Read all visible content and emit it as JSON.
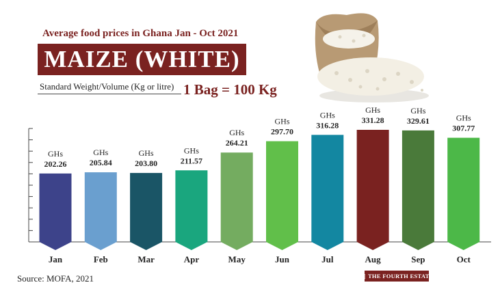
{
  "header": {
    "subtitle": "Average food prices in Ghana Jan - Oct 2021",
    "title": "MAIZE (WHITE)",
    "standard_label": "Standard Weight/Volume (Kg or litre)",
    "bag_label": "1 Bag = 100 Kg"
  },
  "footer": {
    "source": "Source: MOFA, 2021",
    "logo": "THE FOURTH ESTATE"
  },
  "colors": {
    "brand": "#7a2220"
  },
  "chart_data": {
    "type": "bar",
    "categories": [
      "Jan",
      "Feb",
      "Mar",
      "Apr",
      "May",
      "Jun",
      "Jul",
      "Aug",
      "Sep",
      "Oct"
    ],
    "values": [
      202.26,
      205.84,
      203.8,
      211.57,
      264.21,
      297.7,
      316.28,
      331.28,
      329.61,
      307.77
    ],
    "value_labels": [
      "202.26",
      "205.84",
      "203.80",
      "211.57",
      "264.21",
      "297.70",
      "316.28",
      "331.28",
      "329.61",
      "307.77"
    ],
    "currency_label": "GHs",
    "colors": [
      "#3d438a",
      "#6a9fcf",
      "#1a5566",
      "#1aa67e",
      "#74ac60",
      "#61bf4a",
      "#1387a1",
      "#7a2220",
      "#4a7a3a",
      "#4cb848"
    ],
    "ylim": [
      0,
      331.28
    ],
    "grid": false,
    "legend": "none"
  }
}
